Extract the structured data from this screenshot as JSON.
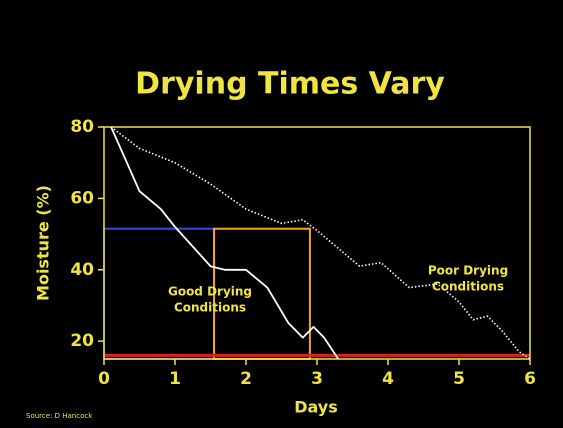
{
  "chart_data": {
    "type": "line",
    "title": "Drying Times Vary",
    "x_label": "Days",
    "y_label": "Moisture (%)",
    "source": "Source: D Hancock",
    "xlim": [
      0,
      6
    ],
    "ylim": [
      15,
      80
    ],
    "xticks": [
      0,
      1,
      2,
      3,
      4,
      5,
      6
    ],
    "yticks": [
      20,
      40,
      60,
      80
    ],
    "frame_color": "#f0e442",
    "series": [
      {
        "color": "#ffffff",
        "dash": "solid",
        "x": [
          0.1,
          0.5,
          0.8,
          1.0,
          1.5,
          1.7,
          2.0,
          2.3,
          2.6,
          2.8,
          2.95,
          3.1,
          3.3
        ],
        "values": [
          80,
          62,
          57,
          52,
          41,
          40,
          40,
          35,
          25,
          21,
          24,
          21,
          15
        ]
      },
      {
        "color": "#ffffff",
        "dash": "dotted",
        "x": [
          0.1,
          0.5,
          1.0,
          1.5,
          2.0,
          2.5,
          2.8,
          3.0,
          3.3,
          3.6,
          3.9,
          4.3,
          4.7,
          5.0,
          5.2,
          5.4,
          5.6,
          5.85,
          6.0
        ],
        "values": [
          80,
          74,
          70,
          64,
          57,
          53,
          54,
          51,
          46,
          41,
          42,
          35,
          36,
          31,
          26,
          27,
          23,
          17,
          15
        ]
      }
    ],
    "boxes": [
      {
        "color": "#3b46e0",
        "x": [
          0,
          1.55
        ],
        "y": [
          15,
          51.5
        ]
      },
      {
        "color": "#f5a623",
        "x": [
          1.55,
          2.9
        ],
        "y": [
          15,
          51.5
        ]
      }
    ],
    "threshold": {
      "color": "#e02020",
      "value": 16
    },
    "annotations": [
      {
        "lines": [
          "Good Drying",
          "Conditions"
        ]
      },
      {
        "lines": [
          "Poor Drying",
          "Conditions"
        ]
      }
    ]
  }
}
